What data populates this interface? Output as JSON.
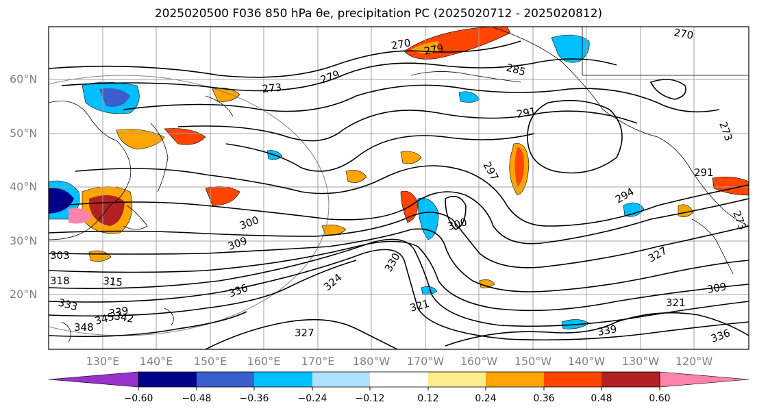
{
  "title": "2025020500 F036 850 hPa θe, precipitation PC (2025020712 - 2025020812)",
  "lat_labels": [
    "60°N",
    "50°N",
    "40°N",
    "30°N",
    "20°N"
  ],
  "lon_labels": [
    "130°E",
    "140°E",
    "150°E",
    "160°E",
    "170°E",
    "180°W",
    "170°W",
    "160°W",
    "150°W",
    "140°W",
    "130°W",
    "120°W"
  ],
  "colorbar": {
    "colors": [
      "#9932cc",
      "#00008b",
      "#3a5fcd",
      "#00bfff",
      "#b0e2ff",
      "#ffffff",
      "#ffec8b",
      "#ffa500",
      "#ff4500",
      "#b22222",
      "#ff83aa"
    ],
    "tick_labels": [
      "−0.60",
      "−0.48",
      "−0.36",
      "−0.24",
      "−0.12",
      "0.12",
      "0.24",
      "0.36",
      "0.48",
      "0.60"
    ]
  },
  "contour_labels": [
    "270",
    "279",
    "285",
    "291",
    "273",
    "279",
    "300",
    "309",
    "303",
    "318",
    "315",
    "324",
    "330",
    "336",
    "333",
    "339",
    "342",
    "345",
    "348",
    "327",
    "321",
    "300",
    "297",
    "294",
    "291",
    "327",
    "321",
    "309",
    "339",
    "336",
    "273",
    "273",
    "270"
  ]
}
